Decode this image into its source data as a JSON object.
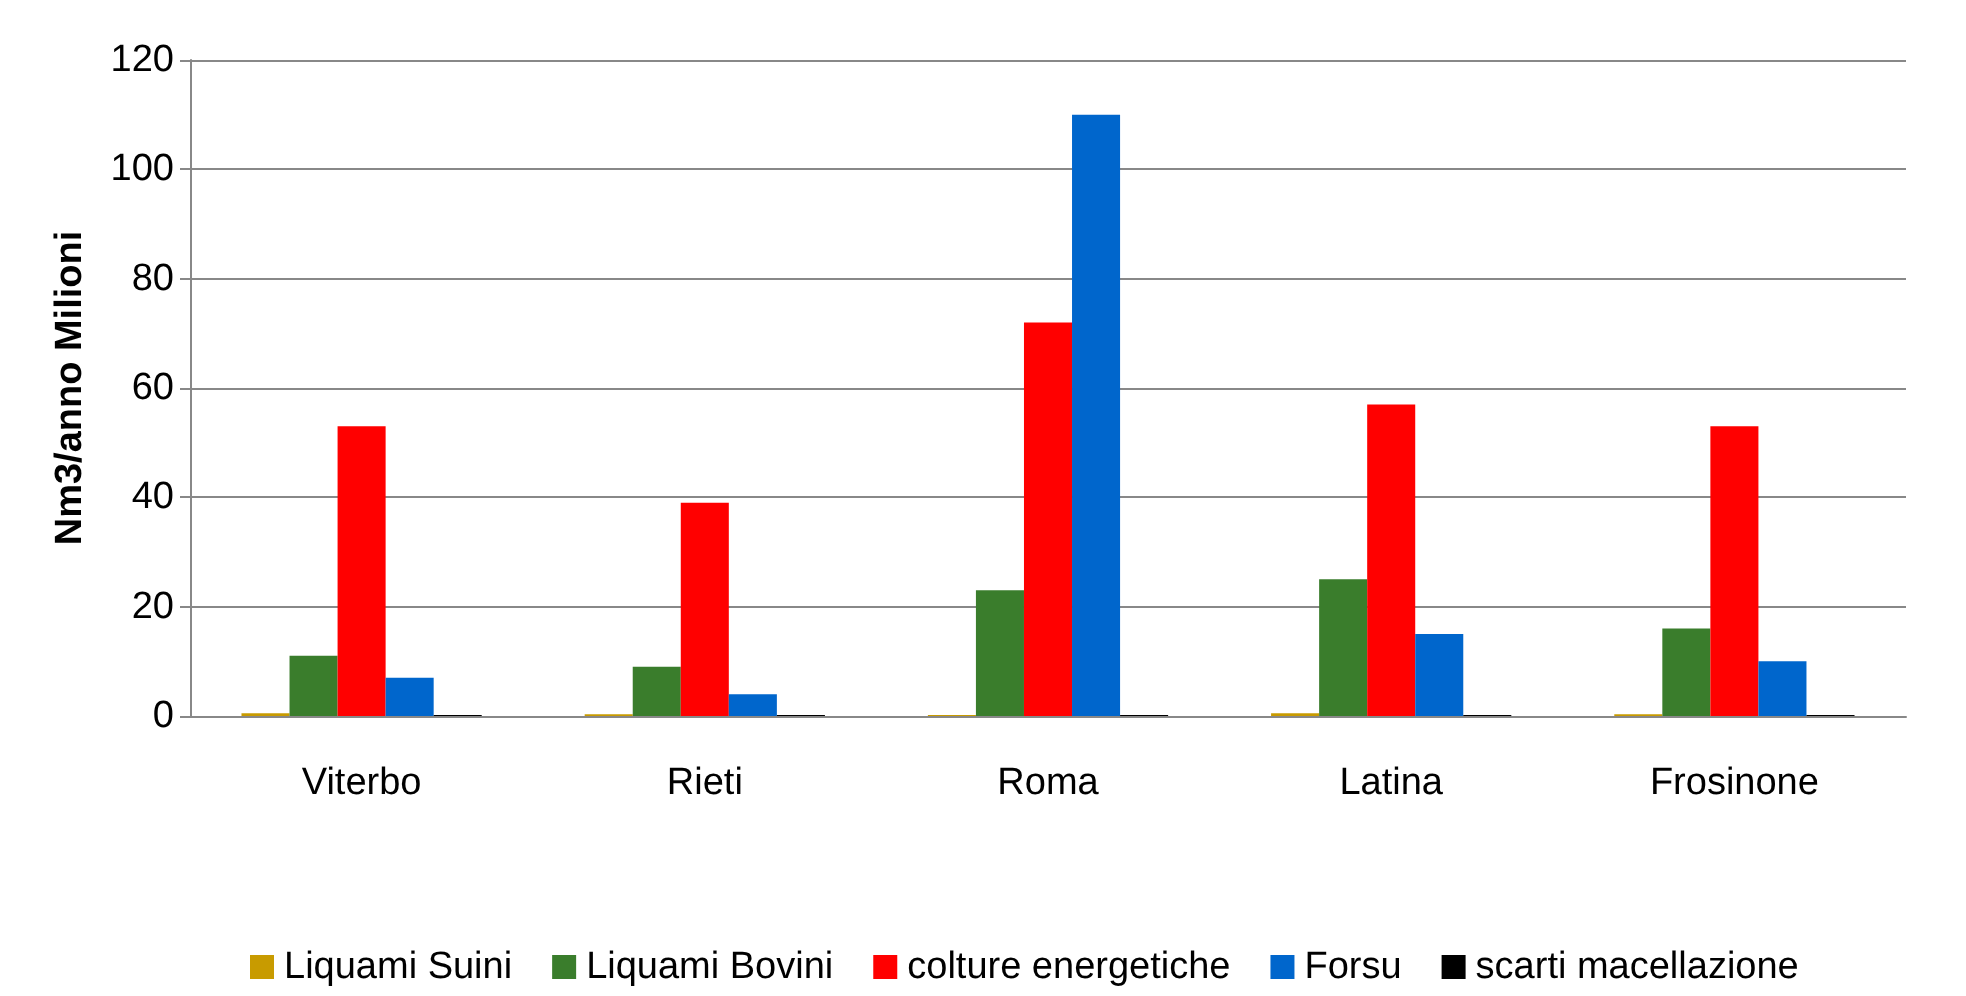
{
  "chart_data": {
    "type": "bar",
    "ylabel": "Nm3/anno Milioni",
    "categories": [
      "Viterbo",
      "Rieti",
      "Roma",
      "Latina",
      "Frosinone"
    ],
    "series": [
      {
        "name": "Liquami Suini",
        "color": "#c89b00",
        "values": [
          0.5,
          0.3,
          0.2,
          0.5,
          0.3
        ]
      },
      {
        "name": "Liquami Bovini",
        "color": "#3a7d2c",
        "values": [
          11,
          9,
          23,
          25,
          16
        ]
      },
      {
        "name": "colture energetiche",
        "color": "#ff0000",
        "values": [
          53,
          39,
          72,
          57,
          53
        ]
      },
      {
        "name": "Forsu",
        "color": "#0066cc",
        "values": [
          7,
          4,
          110,
          15,
          10
        ]
      },
      {
        "name": "scarti macellazione",
        "color": "#000000",
        "values": [
          0.2,
          0.2,
          0.2,
          0.2,
          0.2
        ]
      }
    ],
    "ylim": [
      0,
      120
    ],
    "yticks": [
      0,
      20,
      40,
      60,
      80,
      100,
      120
    ],
    "grid": "y",
    "legend": "bottom"
  }
}
